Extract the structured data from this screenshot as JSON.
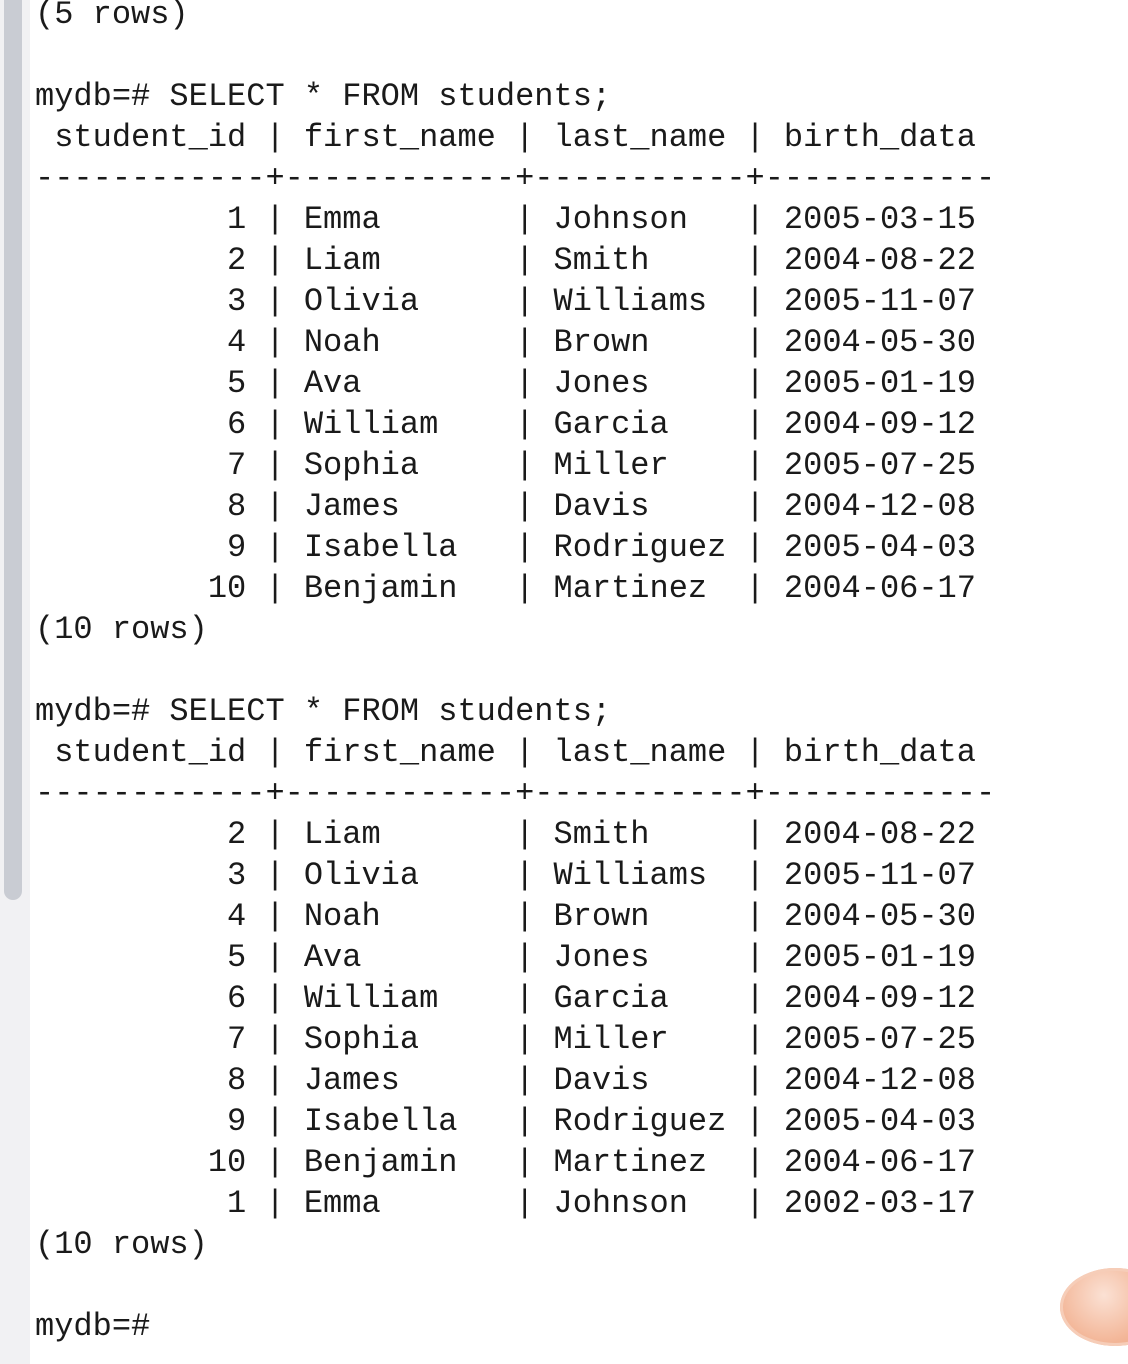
{
  "terminal": {
    "lines": [
      "(5 rows)",
      "",
      "mydb=# SELECT * FROM students;",
      " student_id | first_name | last_name | birth_data",
      "------------+------------+-----------+------------",
      "          1 | Emma       | Johnson   | 2005-03-15",
      "          2 | Liam       | Smith     | 2004-08-22",
      "          3 | Olivia     | Williams  | 2005-11-07",
      "          4 | Noah       | Brown     | 2004-05-30",
      "          5 | Ava        | Jones     | 2005-01-19",
      "          6 | William    | Garcia    | 2004-09-12",
      "          7 | Sophia     | Miller    | 2005-07-25",
      "          8 | James      | Davis     | 2004-12-08",
      "          9 | Isabella   | Rodriguez | 2005-04-03",
      "         10 | Benjamin   | Martinez  | 2004-06-17",
      "(10 rows)",
      "",
      "mydb=# SELECT * FROM students;",
      " student_id | first_name | last_name | birth_data",
      "------------+------------+-----------+------------",
      "          2 | Liam       | Smith     | 2004-08-22",
      "          3 | Olivia     | Williams  | 2005-11-07",
      "          4 | Noah       | Brown     | 2004-05-30",
      "          5 | Ava        | Jones     | 2005-01-19",
      "          6 | William    | Garcia    | 2004-09-12",
      "          7 | Sophia     | Miller    | 2005-07-25",
      "          8 | James      | Davis     | 2004-12-08",
      "          9 | Isabella   | Rodriguez | 2005-04-03",
      "         10 | Benjamin   | Martinez  | 2004-06-17",
      "          1 | Emma       | Johnson   | 2002-03-17",
      "(10 rows)",
      "",
      "mydb=#"
    ]
  },
  "colors": {
    "text": "#1a1a1a",
    "background": "#ffffff",
    "scrollbar_thumb": "#c9ccd3",
    "fab_accent": "#f3b799"
  }
}
